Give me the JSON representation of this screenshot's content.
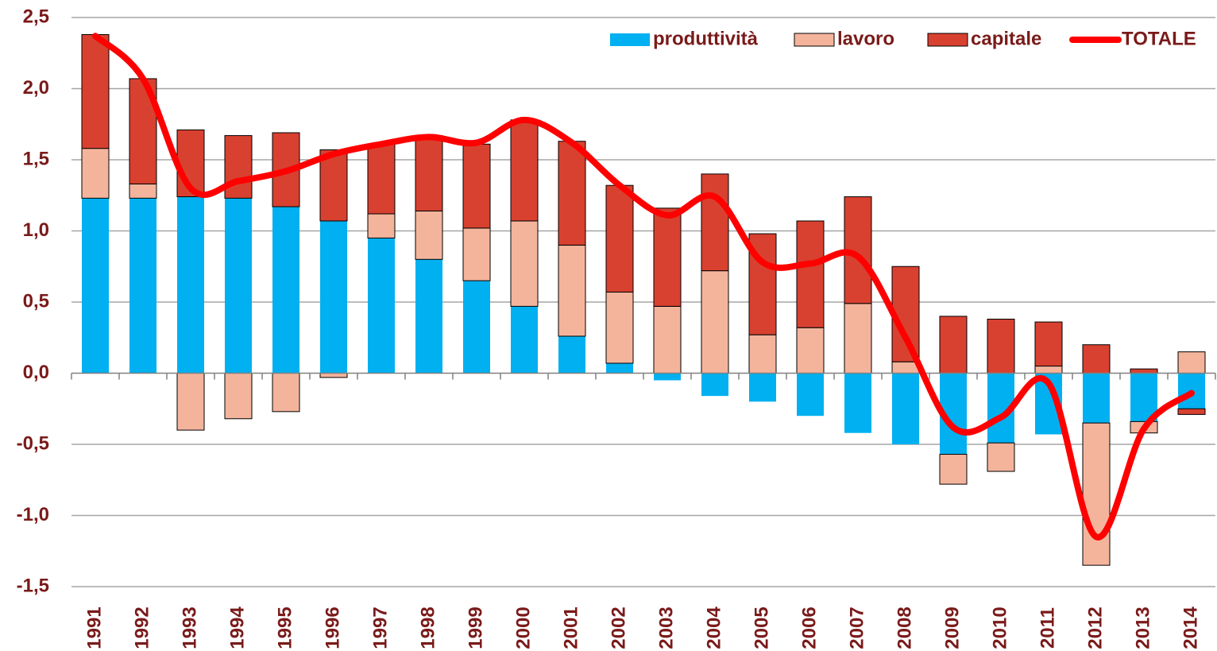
{
  "chart_data": {
    "type": "bar",
    "categories": [
      "1991",
      "1992",
      "1993",
      "1994",
      "1995",
      "1996",
      "1997",
      "1998",
      "1999",
      "2000",
      "2001",
      "2002",
      "2003",
      "2004",
      "2005",
      "2006",
      "2007",
      "2008",
      "2009",
      "2010",
      "2011",
      "2012",
      "2013",
      "2014"
    ],
    "series": [
      {
        "name": "produttività",
        "color": "#00b0f0",
        "values": [
          1.23,
          1.23,
          1.24,
          1.23,
          1.17,
          1.07,
          0.95,
          0.8,
          0.65,
          0.47,
          0.26,
          0.07,
          -0.05,
          -0.16,
          -0.2,
          -0.3,
          -0.42,
          -0.5,
          -0.57,
          -0.49,
          -0.43,
          -0.35,
          -0.34,
          -0.25
        ]
      },
      {
        "name": "lavoro",
        "color": "#f4b49c",
        "values": [
          0.35,
          0.1,
          -0.4,
          -0.32,
          -0.27,
          -0.03,
          0.17,
          0.34,
          0.37,
          0.6,
          0.64,
          0.5,
          0.47,
          0.72,
          0.27,
          0.32,
          0.49,
          0.08,
          -0.21,
          -0.2,
          0.05,
          -1.0,
          -0.08,
          0.15
        ]
      },
      {
        "name": "capitale",
        "color": "#d84130",
        "values": [
          0.8,
          0.74,
          0.47,
          0.44,
          0.52,
          0.5,
          0.49,
          0.53,
          0.59,
          0.71,
          0.73,
          0.75,
          0.69,
          0.68,
          0.71,
          0.75,
          0.75,
          0.67,
          0.4,
          0.38,
          0.31,
          0.2,
          0.03,
          -0.04
        ]
      },
      {
        "name": "TOTALE",
        "color": "#ff0000",
        "type": "line",
        "values": [
          2.37,
          2.07,
          1.3,
          1.35,
          1.42,
          1.54,
          1.61,
          1.66,
          1.62,
          1.78,
          1.62,
          1.32,
          1.11,
          1.24,
          0.78,
          0.77,
          0.82,
          0.25,
          -0.38,
          -0.31,
          -0.07,
          -1.15,
          -0.39,
          -0.14
        ]
      }
    ],
    "ylim": [
      -1.5,
      2.5
    ],
    "yticks": [
      {
        "value": -1.5,
        "label": "-1,5"
      },
      {
        "value": -1.0,
        "label": "-1,0"
      },
      {
        "value": -0.5,
        "label": "-0,5"
      },
      {
        "value": 0,
        "label": "0,0"
      },
      {
        "value": 0.5,
        "label": "0,5"
      },
      {
        "value": 1.0,
        "label": "1,0"
      },
      {
        "value": 1.5,
        "label": "1,5"
      },
      {
        "value": 2.0,
        "label": "2,0"
      },
      {
        "value": 2.5,
        "label": "2,5"
      }
    ],
    "grid": true,
    "legend": "top-right"
  }
}
